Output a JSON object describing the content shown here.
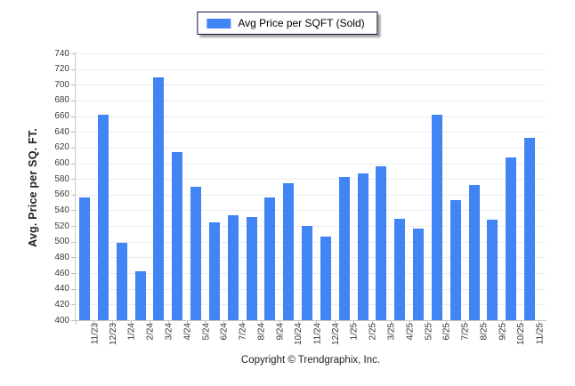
{
  "legend": {
    "label": "Avg Price per SQFT (Sold)"
  },
  "y_axis": {
    "title": "Avg. Price per SQ. FT."
  },
  "footer": {
    "copyright": "Copyright © Trendgraphix, Inc."
  },
  "colors": {
    "bar": "#4184F3",
    "grid": "#ececec",
    "axis": "#c4c4c4",
    "tick_text": "#3a3a3a"
  },
  "chart_data": {
    "type": "bar",
    "title": "Avg Price per SQFT (Sold)",
    "categories": [
      "11/23",
      "12/23",
      "1/24",
      "2/24",
      "3/24",
      "4/24",
      "5/24",
      "6/24",
      "7/24",
      "8/24",
      "9/24",
      "10/24",
      "11/24",
      "12/24",
      "1/25",
      "2/25",
      "3/25",
      "4/25",
      "5/25",
      "6/25",
      "7/25",
      "8/25",
      "9/25",
      "10/25",
      "11/25"
    ],
    "values": [
      556,
      662,
      499,
      462,
      709,
      614,
      570,
      525,
      534,
      531,
      556,
      574,
      520,
      507,
      583,
      587,
      596,
      529,
      517,
      662,
      553,
      572,
      528,
      607,
      632
    ],
    "series": [
      {
        "name": "Avg Price per SQFT (Sold)",
        "color": "#4184F3"
      }
    ],
    "xlabel": "",
    "ylabel": "Avg. Price per SQ. FT.",
    "ylim": [
      400,
      740
    ],
    "ytick_step": 20,
    "grid": true,
    "legend_position": "top-center"
  }
}
